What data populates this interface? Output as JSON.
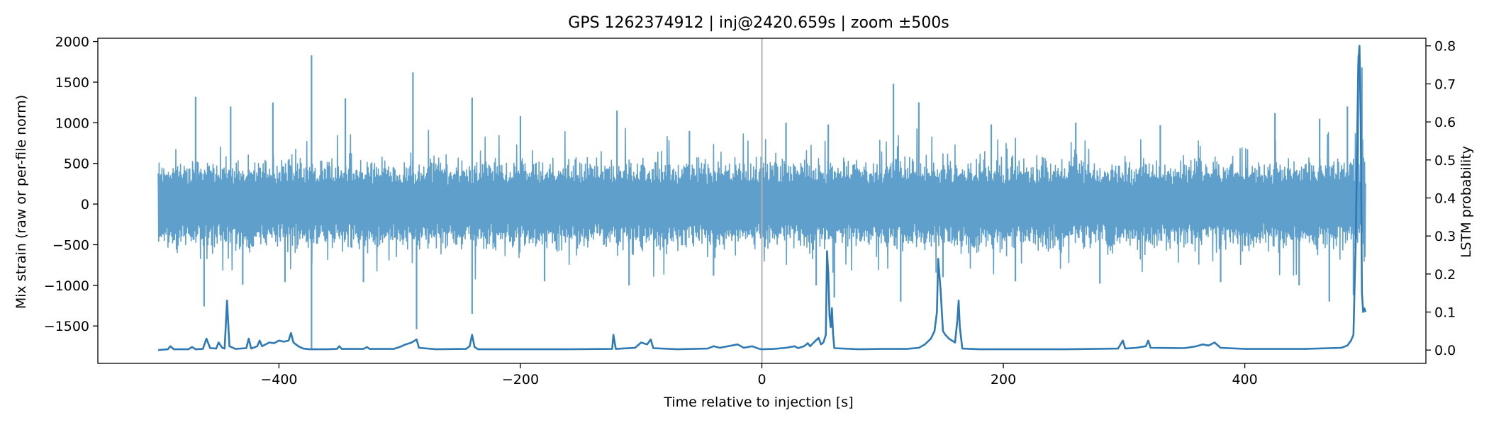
{
  "chart_data": {
    "type": "line",
    "title": "GPS 1262374912 | inj@2420.659s | zoom ±500s",
    "xlabel": "Time relative to injection [s]",
    "ylabel_left": "Mix strain (raw or per-file norm)",
    "ylabel_right": "LSTM probability",
    "xlim": [
      -550,
      550
    ],
    "ylim_left": [
      -1960,
      2040
    ],
    "ylim_right": [
      -0.035,
      0.82
    ],
    "x_ticks": [
      -400,
      -200,
      0,
      200,
      400
    ],
    "y_ticks_left": [
      -1500,
      -1000,
      -500,
      0,
      500,
      1000,
      1500,
      2000
    ],
    "y_ticks_right": [
      0.0,
      0.1,
      0.2,
      0.3,
      0.4,
      0.5,
      0.6,
      0.7,
      0.8
    ],
    "vline_x": 0,
    "grid": false,
    "colors": {
      "strain": "#5f9fcc",
      "probability": "#2f7ab4",
      "vline": "#b3b3b3"
    },
    "series": [
      {
        "axis": "left",
        "x_range": [
          -500,
          500
        ],
        "typical_band": [
          -500,
          500
        ],
        "extreme_spikes": [
          {
            "x": -469,
            "y": 1320
          },
          {
            "x": -462,
            "y": -1260
          },
          {
            "x": -440,
            "y": 1200
          },
          {
            "x": -430,
            "y": -990
          },
          {
            "x": -405,
            "y": 1250
          },
          {
            "x": -395,
            "y": -960
          },
          {
            "x": -373,
            "y": 1830
          },
          {
            "x": -373,
            "y": -1790
          },
          {
            "x": -345,
            "y": 1300
          },
          {
            "x": -330,
            "y": -960
          },
          {
            "x": -289,
            "y": 1620
          },
          {
            "x": -286,
            "y": -1540
          },
          {
            "x": -240,
            "y": 1310
          },
          {
            "x": -240,
            "y": -1350
          },
          {
            "x": -200,
            "y": 1080
          },
          {
            "x": -180,
            "y": -950
          },
          {
            "x": -120,
            "y": 1150
          },
          {
            "x": -110,
            "y": -1000
          },
          {
            "x": -60,
            "y": 900
          },
          {
            "x": -40,
            "y": -880
          },
          {
            "x": 20,
            "y": 1000
          },
          {
            "x": 45,
            "y": -1000
          },
          {
            "x": 55,
            "y": 980
          },
          {
            "x": 60,
            "y": -1150
          },
          {
            "x": 109,
            "y": 1480
          },
          {
            "x": 115,
            "y": -1200
          },
          {
            "x": 130,
            "y": 1250
          },
          {
            "x": 150,
            "y": -900
          },
          {
            "x": 190,
            "y": 980
          },
          {
            "x": 210,
            "y": -950
          },
          {
            "x": 260,
            "y": 1000
          },
          {
            "x": 280,
            "y": -980
          },
          {
            "x": 330,
            "y": 970
          },
          {
            "x": 380,
            "y": -960
          },
          {
            "x": 425,
            "y": 1120
          },
          {
            "x": 445,
            "y": -1000
          },
          {
            "x": 462,
            "y": 1050
          },
          {
            "x": 470,
            "y": -1200
          },
          {
            "x": 485,
            "y": 1200
          },
          {
            "x": 490,
            "y": -1120
          },
          {
            "x": 494,
            "y": 1830
          },
          {
            "x": 497,
            "y": 1680
          }
        ]
      },
      {
        "axis": "right",
        "points": [
          [
            -500,
            0.0
          ],
          [
            -492,
            0.002
          ],
          [
            -490,
            0.01
          ],
          [
            -487,
            0.002
          ],
          [
            -475,
            0.002
          ],
          [
            -472,
            0.008
          ],
          [
            -469,
            0.002
          ],
          [
            -463,
            0.003
          ],
          [
            -460,
            0.03
          ],
          [
            -457,
            0.005
          ],
          [
            -452,
            0.004
          ],
          [
            -450,
            0.02
          ],
          [
            -447,
            0.006
          ],
          [
            -445,
            0.004
          ],
          [
            -443,
            0.13
          ],
          [
            -441,
            0.01
          ],
          [
            -436,
            0.003
          ],
          [
            -427,
            0.005
          ],
          [
            -425,
            0.03
          ],
          [
            -423,
            0.004
          ],
          [
            -418,
            0.01
          ],
          [
            -416,
            0.025
          ],
          [
            -414,
            0.01
          ],
          [
            -408,
            0.02
          ],
          [
            -404,
            0.018
          ],
          [
            -400,
            0.025
          ],
          [
            -396,
            0.022
          ],
          [
            -392,
            0.025
          ],
          [
            -390,
            0.045
          ],
          [
            -388,
            0.02
          ],
          [
            -384,
            0.01
          ],
          [
            -380,
            0.004
          ],
          [
            -375,
            0.002
          ],
          [
            -360,
            0.002
          ],
          [
            -352,
            0.003
          ],
          [
            -350,
            0.01
          ],
          [
            -348,
            0.003
          ],
          [
            -330,
            0.003
          ],
          [
            -327,
            0.008
          ],
          [
            -325,
            0.003
          ],
          [
            -305,
            0.003
          ],
          [
            -300,
            0.008
          ],
          [
            -295,
            0.015
          ],
          [
            -290,
            0.02
          ],
          [
            -286,
            0.028
          ],
          [
            -284,
            0.006
          ],
          [
            -270,
            0.002
          ],
          [
            -245,
            0.003
          ],
          [
            -242,
            0.01
          ],
          [
            -240,
            0.04
          ],
          [
            -238,
            0.008
          ],
          [
            -235,
            0.002
          ],
          [
            -200,
            0.002
          ],
          [
            -160,
            0.002
          ],
          [
            -124,
            0.003
          ],
          [
            -123,
            0.04
          ],
          [
            -121,
            0.003
          ],
          [
            -105,
            0.006
          ],
          [
            -100,
            0.02
          ],
          [
            -95,
            0.015
          ],
          [
            -92,
            0.028
          ],
          [
            -90,
            0.005
          ],
          [
            -70,
            0.002
          ],
          [
            -45,
            0.004
          ],
          [
            -40,
            0.01
          ],
          [
            -35,
            0.006
          ],
          [
            -25,
            0.012
          ],
          [
            -20,
            0.015
          ],
          [
            -15,
            0.006
          ],
          [
            -8,
            0.01
          ],
          [
            -3,
            0.004
          ],
          [
            0,
            0.002
          ],
          [
            10,
            0.003
          ],
          [
            20,
            0.006
          ],
          [
            27,
            0.01
          ],
          [
            30,
            0.005
          ],
          [
            35,
            0.01
          ],
          [
            38,
            0.018
          ],
          [
            40,
            0.01
          ],
          [
            43,
            0.02
          ],
          [
            47,
            0.032
          ],
          [
            49,
            0.015
          ],
          [
            51,
            0.02
          ],
          [
            53,
            0.04
          ],
          [
            54,
            0.26
          ],
          [
            55,
            0.2
          ],
          [
            56,
            0.09
          ],
          [
            57,
            0.06
          ],
          [
            58,
            0.11
          ],
          [
            59,
            0.04
          ],
          [
            60,
            0.005
          ],
          [
            80,
            0.002
          ],
          [
            100,
            0.003
          ],
          [
            120,
            0.003
          ],
          [
            130,
            0.006
          ],
          [
            135,
            0.015
          ],
          [
            140,
            0.03
          ],
          [
            143,
            0.05
          ],
          [
            145,
            0.1
          ],
          [
            146,
            0.24
          ],
          [
            148,
            0.16
          ],
          [
            150,
            0.05
          ],
          [
            152,
            0.04
          ],
          [
            155,
            0.03
          ],
          [
            160,
            0.02
          ],
          [
            162,
            0.08
          ],
          [
            163,
            0.13
          ],
          [
            164,
            0.06
          ],
          [
            166,
            0.004
          ],
          [
            180,
            0.002
          ],
          [
            250,
            0.002
          ],
          [
            295,
            0.004
          ],
          [
            299,
            0.025
          ],
          [
            301,
            0.004
          ],
          [
            310,
            0.006
          ],
          [
            318,
            0.01
          ],
          [
            320,
            0.025
          ],
          [
            322,
            0.006
          ],
          [
            350,
            0.005
          ],
          [
            360,
            0.01
          ],
          [
            365,
            0.015
          ],
          [
            370,
            0.012
          ],
          [
            375,
            0.02
          ],
          [
            380,
            0.006
          ],
          [
            400,
            0.003
          ],
          [
            450,
            0.003
          ],
          [
            480,
            0.006
          ],
          [
            485,
            0.012
          ],
          [
            488,
            0.025
          ],
          [
            490,
            0.04
          ],
          [
            492,
            0.3
          ],
          [
            494,
            0.75
          ],
          [
            495,
            0.8
          ],
          [
            496,
            0.6
          ],
          [
            497,
            0.15
          ],
          [
            498,
            0.1
          ],
          [
            499,
            0.11
          ],
          [
            500,
            0.1
          ]
        ]
      }
    ]
  }
}
